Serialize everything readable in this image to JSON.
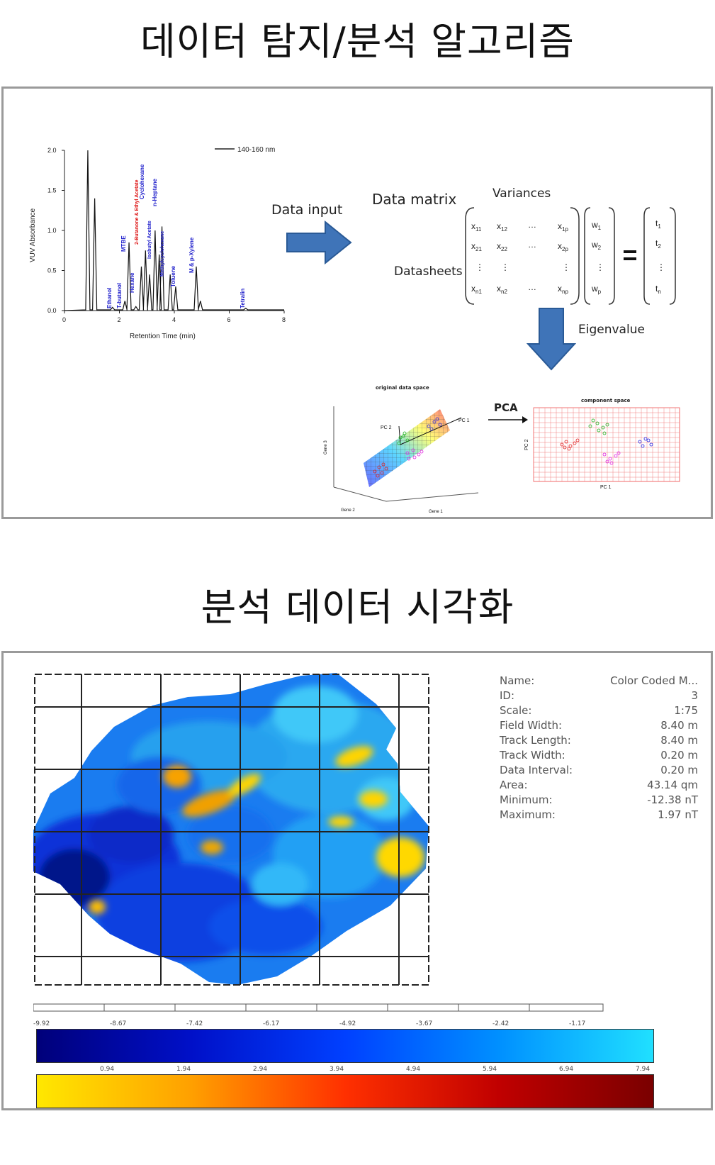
{
  "headings": {
    "top": "데이터 탐지/분석 알고리즘",
    "bottom": "분석 데이터 시각화"
  },
  "chromatogram": {
    "ylabel": "VUV Absorbance",
    "xlabel": "Retention Time (min)",
    "legend": "140-160 nm",
    "yticks": [
      "0.0",
      "0.5",
      "1.0",
      "1.5",
      "2.0"
    ],
    "xticks": [
      "0",
      "2",
      "4",
      "6",
      "8"
    ],
    "peak_labels": [
      {
        "text": "Ethanol",
        "color": "#2222cc"
      },
      {
        "text": "T-butanol",
        "color": "#2222cc"
      },
      {
        "text": "MTBE",
        "color": "#2222cc"
      },
      {
        "text": "Hexane",
        "color": "#2222cc"
      },
      {
        "text": "2-Butanone & Ethyl Acetate",
        "color": "#dd1111"
      },
      {
        "text": "Cyclohexane",
        "color": "#2222cc"
      },
      {
        "text": "Isobutyl Acetate",
        "color": "#2222cc"
      },
      {
        "text": "n-Heptane",
        "color": "#2222cc"
      },
      {
        "text": "Methylcyclohexane",
        "color": "#2222cc"
      },
      {
        "text": "Toluene",
        "color": "#2222cc"
      },
      {
        "text": "M & p-Xylene",
        "color": "#2222cc"
      },
      {
        "text": "Tetralin",
        "color": "#2222cc"
      }
    ]
  },
  "pca_flow": {
    "data_input": "Data input",
    "data_matrix": "Data matrix",
    "variances": "Variances",
    "datasheets": "Datasheets",
    "eigenvalue": "Eigenvalue",
    "pca": "PCA",
    "original_space_title": "original data space",
    "component_space_title": "component space",
    "gene1": "Gene 1",
    "gene2": "Gene 2",
    "gene3": "Gene 3",
    "pc1": "PC 1",
    "pc2": "PC 2",
    "pc1_short": "PC 1",
    "pc2_short": "PC 2"
  },
  "map_info": {
    "rows": [
      {
        "k": "Name:",
        "v": "Color Coded M..."
      },
      {
        "k": "ID:",
        "v": "3"
      },
      {
        "k": "Scale:",
        "v": "1:75"
      },
      {
        "k": "Field Width:",
        "v": "8.40 m"
      },
      {
        "k": "Track Length:",
        "v": "8.40 m"
      },
      {
        "k": "Track Width:",
        "v": "0.20 m"
      },
      {
        "k": "Data Interval:",
        "v": "0.20 m"
      },
      {
        "k": "Area:",
        "v": "43.14 qm"
      },
      {
        "k": "Minimum:",
        "v": "-12.38 nT"
      },
      {
        "k": "Maximum:",
        "v": "1.97 nT"
      }
    ]
  },
  "colorbars": {
    "blue_ticks": [
      "-9.92",
      "-8.67",
      "-7.42",
      "-6.17",
      "-4.92",
      "-3.67",
      "-2.42",
      "-1.17"
    ],
    "warm_ticks": [
      "0.94",
      "1.94",
      "2.94",
      "3.94",
      "4.94",
      "5.94",
      "6.94",
      "7.94"
    ],
    "blue_gradient": [
      "#00007a",
      "#0010c8",
      "#0040ff",
      "#0090ff",
      "#20e0ff"
    ],
    "warm_gradient": [
      "#ffe800",
      "#ffa000",
      "#ff3000",
      "#c00000",
      "#7a0000"
    ]
  }
}
